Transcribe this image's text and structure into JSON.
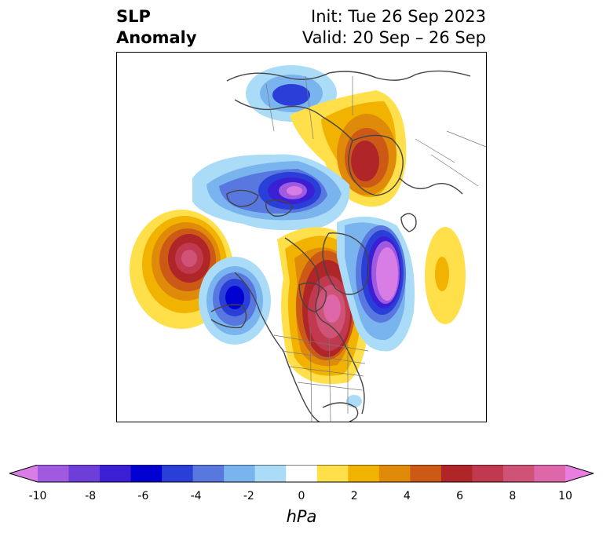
{
  "header": {
    "title_line1": "SLP",
    "title_line2": "Anomaly",
    "init_text": "Init: Tue 26 Sep 2023",
    "valid_text": "Valid: 20 Sep – 26 Sep"
  },
  "map": {
    "projection": "polar stereographic (Northern Hemisphere)",
    "field": "sea level pressure anomaly",
    "anomaly_centers": [
      {
        "region": "northern Siberia / Arctic",
        "sign": "negative",
        "peak_hpa": -5
      },
      {
        "region": "Scandinavia / Barents Sea",
        "sign": "positive",
        "peak_hpa": 6
      },
      {
        "region": "Arctic north of Russia",
        "sign": "negative",
        "peak_hpa": -8
      },
      {
        "region": "North Pacific",
        "sign": "positive",
        "peak_hpa": 8
      },
      {
        "region": "Gulf of Alaska",
        "sign": "negative",
        "peak_hpa": -6
      },
      {
        "region": "Canada / Hudson Bay",
        "sign": "positive",
        "peak_hpa": 9
      },
      {
        "region": "Greenland / North Atlantic",
        "sign": "negative",
        "peak_hpa": -10
      },
      {
        "region": "eastern North Atlantic",
        "sign": "positive",
        "peak_hpa": 3
      }
    ]
  },
  "colorbar": {
    "unit": "hPa",
    "min": -10,
    "max": 10,
    "extend": "both",
    "tick_labels": [
      "-10",
      "-8",
      "-6",
      "-4",
      "-2",
      "0",
      "2",
      "4",
      "6",
      "8",
      "10"
    ],
    "colors": [
      "#d87de6",
      "#a05ae0",
      "#6e3ed9",
      "#3a1fd4",
      "#0000d0",
      "#2a3fd8",
      "#5878e0",
      "#7ab4ef",
      "#aadcf7",
      "#ffffff",
      "#ffe04a",
      "#f2b300",
      "#e08a0a",
      "#cc5a16",
      "#b02528",
      "#c0394f",
      "#cf5377",
      "#dd67a8",
      "#e97ee0"
    ]
  }
}
